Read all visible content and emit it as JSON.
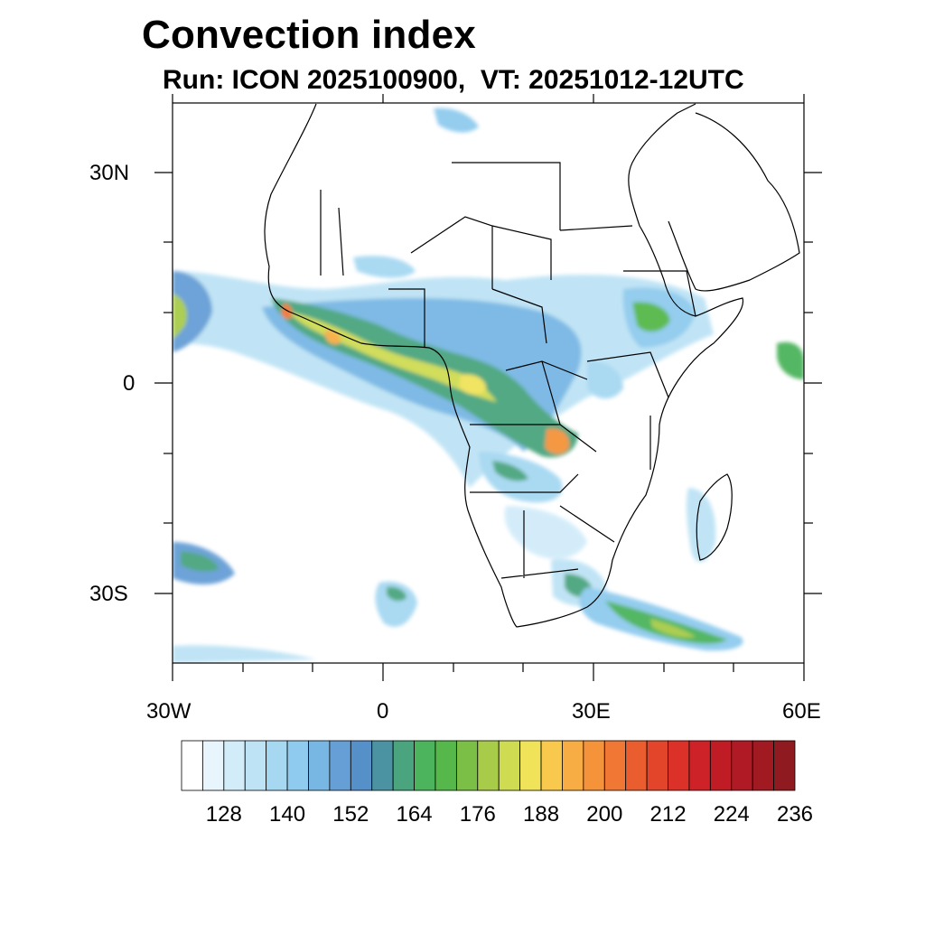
{
  "title": "Convection index",
  "subtitle": "Run: ICON 2025100900,  VT: 20251012-12UTC",
  "axes": {
    "lat_labels": [
      "30N",
      "0",
      "30S"
    ],
    "lon_labels": [
      "30W",
      "0",
      "30E",
      "60E"
    ],
    "lat_range": [
      -40,
      40
    ],
    "lon_range": [
      -30,
      60
    ]
  },
  "colorbar": {
    "levels": [
      120,
      124,
      128,
      132,
      136,
      140,
      144,
      148,
      152,
      156,
      160,
      164,
      168,
      172,
      176,
      180,
      184,
      188,
      192,
      196,
      200,
      204,
      208,
      212,
      216,
      220,
      224,
      228,
      232,
      236
    ],
    "tick_labels": [
      "128",
      "140",
      "152",
      "164",
      "176",
      "188",
      "200",
      "212",
      "224",
      "236"
    ],
    "colors": [
      "#ffffff",
      "#e8f5fc",
      "#d2ecf9",
      "#bde3f5",
      "#a6d8f2",
      "#8fcbee",
      "#78b7e4",
      "#669fd6",
      "#5590c8",
      "#4b93a2",
      "#4aa57e",
      "#4cb45c",
      "#56b84a",
      "#7bbf47",
      "#a8cc4a",
      "#cfdc52",
      "#f0e35a",
      "#f8c94c",
      "#f7ad44",
      "#f5933b",
      "#f07834",
      "#ea5d2e",
      "#e3452a",
      "#dc3128",
      "#cd2227",
      "#bf1c26",
      "#b01a25",
      "#a11a22",
      "#8f1a1f"
    ]
  }
}
